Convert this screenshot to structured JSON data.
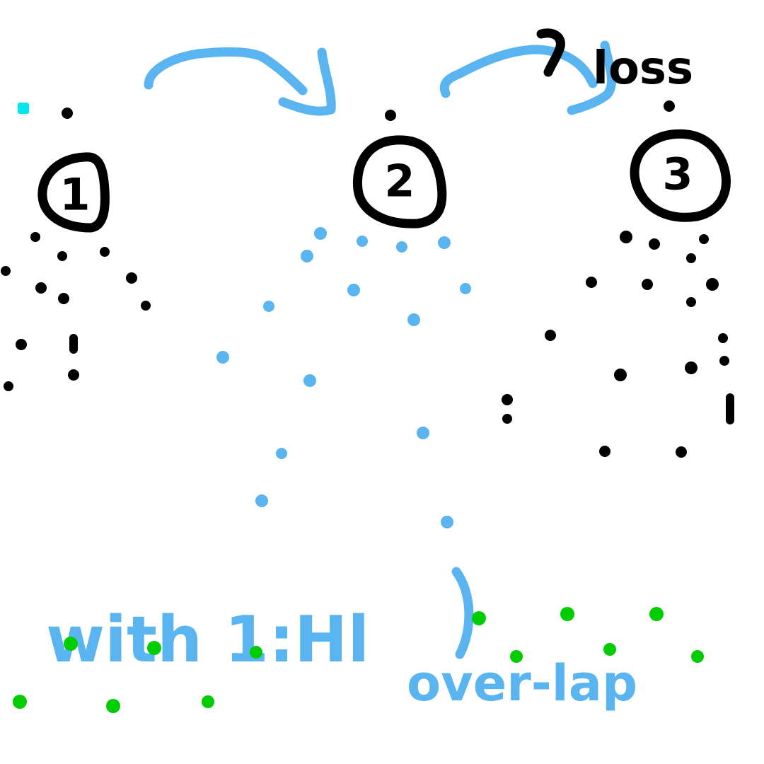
{
  "nodes": [
    {
      "id": "node-1",
      "label": "1"
    },
    {
      "id": "node-2",
      "label": "2"
    },
    {
      "id": "node-3",
      "label": "3"
    }
  ],
  "annotations": {
    "loss": "loss",
    "with_text": "with 1:Hl",
    "overlap_text": "over-lap"
  },
  "colors": {
    "ink_black": "#000000",
    "ink_blue": "#5ab4f0",
    "dots_green": "#00cc00",
    "dot_cyan": "#00e5ee",
    "background": "#ffffff"
  }
}
